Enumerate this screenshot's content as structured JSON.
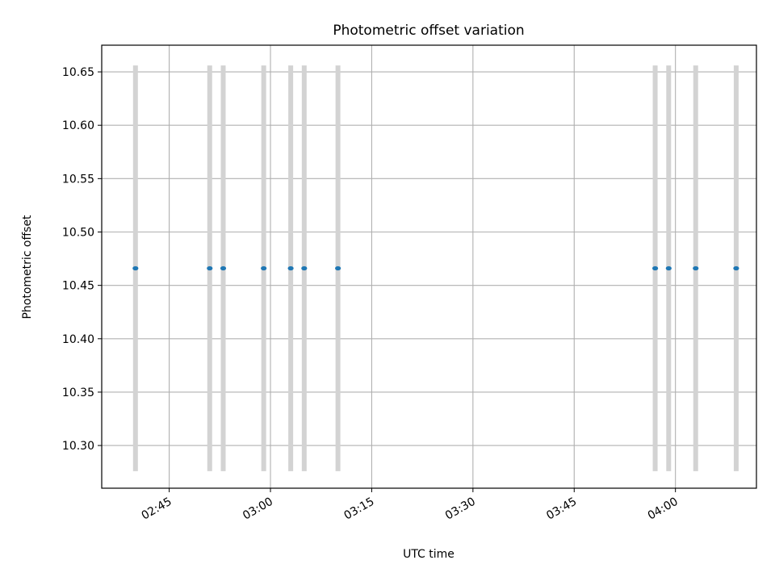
{
  "chart_data": {
    "type": "scatter",
    "title": "Photometric offset variation",
    "xlabel": "UTC time",
    "ylabel": "Photometric offset",
    "xlim": [
      "02:35",
      "04:12"
    ],
    "ylim": [
      10.26,
      10.675
    ],
    "grid": true,
    "x_ticks": [
      "02:45",
      "03:00",
      "03:15",
      "03:30",
      "03:45",
      "04:00"
    ],
    "y_ticks": [
      "10.30",
      "10.35",
      "10.40",
      "10.45",
      "10.50",
      "10.55",
      "10.60",
      "10.65"
    ],
    "series": [
      {
        "color": "#1f77b4",
        "errorbar_color": "#d3d3d3",
        "points": [
          {
            "x": "02:40",
            "y": 10.466,
            "yerr": 0.19
          },
          {
            "x": "02:51",
            "y": 10.466,
            "yerr": 0.19
          },
          {
            "x": "02:53",
            "y": 10.466,
            "yerr": 0.19
          },
          {
            "x": "02:59",
            "y": 10.466,
            "yerr": 0.19
          },
          {
            "x": "03:03",
            "y": 10.466,
            "yerr": 0.19
          },
          {
            "x": "03:05",
            "y": 10.466,
            "yerr": 0.19
          },
          {
            "x": "03:10",
            "y": 10.466,
            "yerr": 0.19
          },
          {
            "x": "03:57",
            "y": 10.466,
            "yerr": 0.19
          },
          {
            "x": "03:59",
            "y": 10.466,
            "yerr": 0.19
          },
          {
            "x": "04:03",
            "y": 10.466,
            "yerr": 0.19
          },
          {
            "x": "04:09",
            "y": 10.466,
            "yerr": 0.19
          }
        ]
      }
    ]
  }
}
